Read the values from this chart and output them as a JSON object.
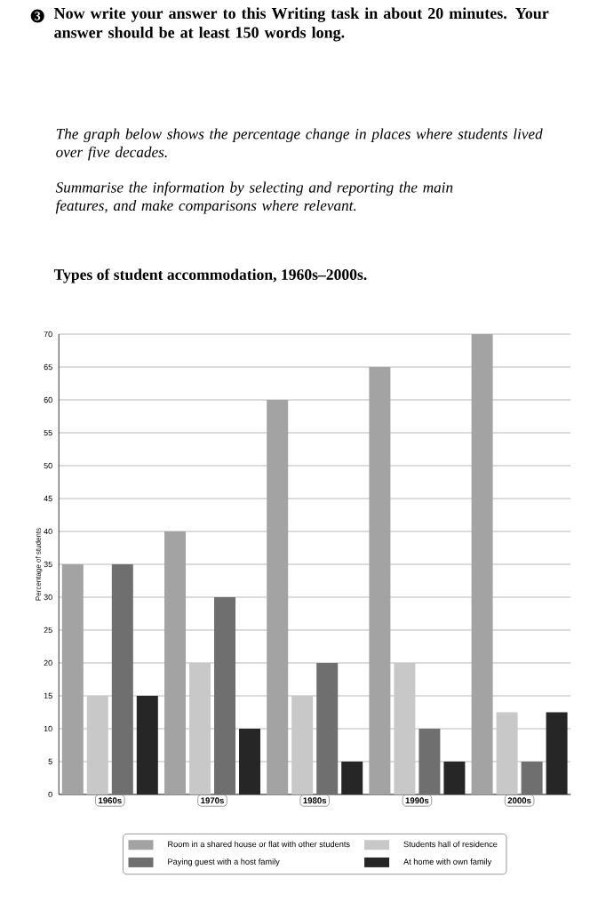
{
  "chart_data": {
    "type": "bar",
    "title": "Types of student accommodation, 1960s–2000s.",
    "ylabel": "Percentage of students",
    "annotations": [
      "3",
      "Now write your answer to this Writing task in about 20 minutes. Your answer should be at least 150 words long.",
      "The graph below shows the percentage change in places where students lived over five decades.",
      "Summarise the information by selecting and reporting the main features, and make comparisons where relevant."
    ],
    "categories": [
      "1960s",
      "1970s",
      "1980s",
      "1990s",
      "2000s"
    ],
    "series": [
      {
        "name": "Room in a shared house or flat with other students",
        "color": "#a3a3a3",
        "values": [
          35,
          40,
          60,
          65,
          70
        ]
      },
      {
        "name": "Students hall of residence",
        "color": "#c8c8c8",
        "values": [
          15,
          20,
          15,
          20,
          12.5
        ]
      },
      {
        "name": "Paying guest with a host family",
        "color": "#6f6f6f",
        "values": [
          35,
          30,
          20,
          10,
          5
        ]
      },
      {
        "name": "At home with own family",
        "color": "#262626",
        "values": [
          15,
          10,
          5,
          5,
          12.5
        ]
      }
    ],
    "ylim": [
      0,
      70
    ],
    "yticks": [
      0,
      5,
      10,
      15,
      20,
      25,
      30,
      35,
      40,
      45,
      50,
      55,
      60,
      65,
      70
    ],
    "grid": "y",
    "legend": "bottom"
  }
}
